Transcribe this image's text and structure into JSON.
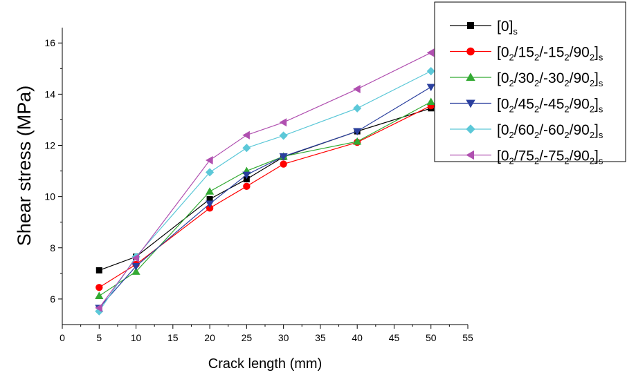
{
  "chart_data": {
    "type": "line",
    "title": "",
    "xlabel": "Crack length (mm)",
    "ylabel": "Shear stress  (MPa)",
    "xlim": [
      0,
      55
    ],
    "ylim": [
      5,
      16.6
    ],
    "xticks": [
      0,
      5,
      10,
      15,
      20,
      25,
      30,
      35,
      40,
      45,
      50,
      55
    ],
    "yticks": [
      6,
      8,
      10,
      12,
      14,
      16
    ],
    "grid": false,
    "legend_position": "top-right",
    "x": [
      5,
      10,
      20,
      25,
      30,
      40,
      50
    ],
    "series": [
      {
        "name": "[0]s",
        "legend_parts": [
          "[0]",
          "s"
        ],
        "color": "#000000",
        "marker": "square",
        "values": [
          7.12,
          7.65,
          9.9,
          10.68,
          11.55,
          12.55,
          13.45
        ]
      },
      {
        "name": "[02/152/-152/902]s",
        "legend_parts": [
          "[0",
          "2",
          "/15",
          "2",
          "/-15",
          "2",
          "/90",
          "2",
          "]",
          "s"
        ],
        "color": "#ff0000",
        "marker": "circle",
        "values": [
          6.45,
          7.35,
          9.55,
          10.4,
          11.27,
          12.12,
          13.55
        ]
      },
      {
        "name": "[02/302/-302/902]s",
        "legend_parts": [
          "[0",
          "2",
          "/30",
          "2",
          "/-30",
          "2",
          "/90",
          "2",
          "]",
          "s"
        ],
        "color": "#33aa33",
        "marker": "triangle-up",
        "values": [
          6.12,
          7.07,
          10.2,
          11.0,
          11.57,
          12.15,
          13.7
        ]
      },
      {
        "name": "[02/452/-452/902]s",
        "legend_parts": [
          "[0",
          "2",
          "/45",
          "2",
          "/-45",
          "2",
          "/90",
          "2",
          "]",
          "s"
        ],
        "color": "#2a3f9e",
        "marker": "triangle-down",
        "values": [
          5.65,
          7.28,
          9.72,
          10.85,
          11.57,
          12.55,
          14.28
        ]
      },
      {
        "name": "[02/602/-602/902]s",
        "legend_parts": [
          "[0",
          "2",
          "/60",
          "2",
          "/-60",
          "2",
          "/90",
          "2",
          "]",
          "s"
        ],
        "color": "#5cc8d8",
        "marker": "diamond",
        "values": [
          5.52,
          7.65,
          10.95,
          11.9,
          12.38,
          13.45,
          14.9
        ]
      },
      {
        "name": "[02/752/-752/902]s",
        "legend_parts": [
          "[0",
          "2",
          "/75",
          "2",
          "/-75",
          "2",
          "/90",
          "2",
          "]",
          "s"
        ],
        "color": "#b050b0",
        "marker": "triangle-left",
        "values": [
          5.65,
          7.6,
          11.42,
          12.4,
          12.9,
          14.2,
          15.62
        ]
      }
    ]
  }
}
